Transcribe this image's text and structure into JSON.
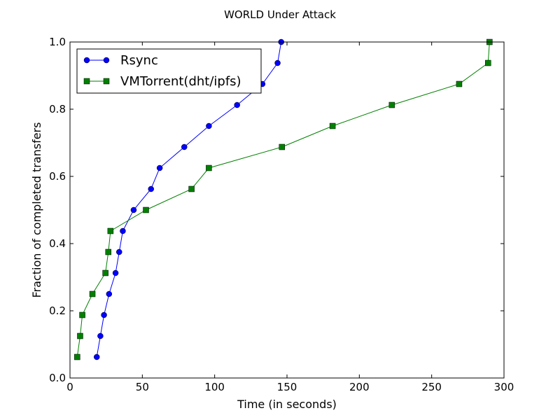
{
  "chart_data": {
    "type": "line",
    "title": "WORLD Under Attack",
    "xlabel": "Time (in seconds)",
    "ylabel": "Fraction of completed transfers",
    "xlim": [
      0,
      300
    ],
    "ylim": [
      0.0,
      1.0
    ],
    "xticks": [
      "0",
      "50",
      "100",
      "150",
      "200",
      "250",
      "300"
    ],
    "yticks": [
      "0.0",
      "0.2",
      "0.4",
      "0.6",
      "0.8",
      "1.0"
    ],
    "grid": false,
    "legend_position": "top-left",
    "series": [
      {
        "name": "Rsync",
        "color": "#0000ff",
        "marker": "circle",
        "x": [
          18.5,
          21,
          23.5,
          27,
          31.5,
          34,
          36.5,
          44,
          56,
          62,
          79,
          96,
          115.5,
          133,
          143.5,
          146
        ],
        "y": [
          0.0625,
          0.125,
          0.1875,
          0.25,
          0.3125,
          0.375,
          0.4375,
          0.5,
          0.5625,
          0.625,
          0.6875,
          0.75,
          0.8125,
          0.875,
          0.9375,
          1.0
        ]
      },
      {
        "name": "VMTorrent(dht/ipfs)",
        "color": "#008000",
        "marker": "square",
        "x": [
          5,
          7,
          8.5,
          15.5,
          24.5,
          26.5,
          28,
          52.5,
          84,
          96,
          146.5,
          181.5,
          222.5,
          269,
          289,
          290
        ],
        "y": [
          0.0625,
          0.125,
          0.1875,
          0.25,
          0.3125,
          0.375,
          0.4375,
          0.5,
          0.5625,
          0.625,
          0.6875,
          0.75,
          0.8125,
          0.875,
          0.9375,
          1.0
        ]
      }
    ]
  }
}
